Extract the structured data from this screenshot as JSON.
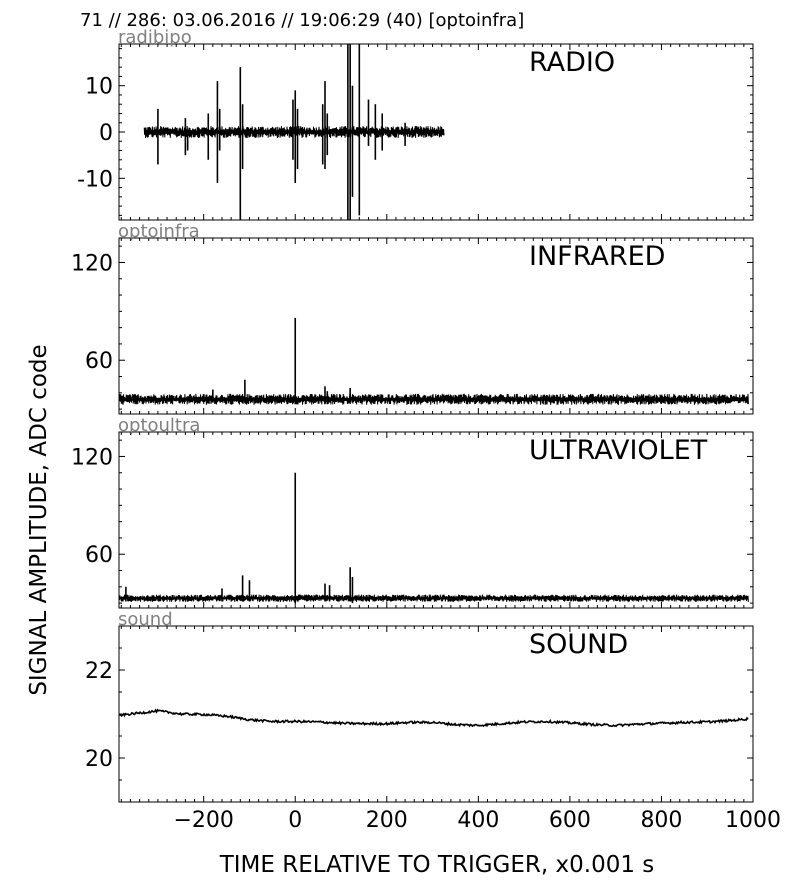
{
  "figure": {
    "header": "71 // 286:   03.06.2016 // 19:06:29 (40)  [optoinfra]",
    "ylabel": "SIGNAL AMPLITUDE,  ADC code",
    "xlabel": "TIME RELATIVE TO TRIGGER,   x0.001 s",
    "x_ticks": [
      "−200",
      "0",
      "200",
      "400",
      "600",
      "800",
      "1000"
    ]
  },
  "chart_data": [
    {
      "type": "line",
      "channel": "radibipo",
      "panel_label": "RADIO",
      "xlim": [
        -385,
        1000
      ],
      "ylim": [
        -19,
        19
      ],
      "y_ticks": [
        10,
        0,
        -10
      ],
      "y_tick_labels": [
        "10",
        "0",
        "-10"
      ],
      "x_range": [
        -330,
        325
      ],
      "baseline": 0,
      "noise": 1.0,
      "spikes": [
        [
          -300,
          5,
          -7
        ],
        [
          -240,
          3,
          -5
        ],
        [
          -235,
          -4,
          0
        ],
        [
          -190,
          4,
          -6
        ],
        [
          -170,
          11,
          -11
        ],
        [
          -165,
          5,
          -4
        ],
        [
          -120,
          14,
          -19
        ],
        [
          -115,
          6,
          -8
        ],
        [
          0,
          9,
          -11
        ],
        [
          5,
          5,
          -8
        ],
        [
          -5,
          7,
          -6
        ],
        [
          60,
          6,
          -7
        ],
        [
          65,
          11,
          -8
        ],
        [
          70,
          4,
          -5
        ],
        [
          115,
          19,
          -19
        ],
        [
          120,
          19,
          -19
        ],
        [
          125,
          10,
          -14
        ],
        [
          140,
          19,
          -18
        ],
        [
          160,
          7,
          -3
        ],
        [
          175,
          6,
          -6
        ],
        [
          190,
          4,
          -4
        ],
        [
          240,
          2,
          -3
        ]
      ]
    },
    {
      "type": "line",
      "channel": "optoinfra",
      "panel_label": "INFRARED",
      "xlim": [
        -385,
        1000
      ],
      "ylim": [
        27,
        135
      ],
      "y_ticks": [
        120,
        60
      ],
      "y_tick_labels": [
        "120",
        "60"
      ],
      "x_range": [
        -385,
        990
      ],
      "baseline": 36,
      "noise": 2.6,
      "spikes": [
        [
          -180,
          42,
          34
        ],
        [
          -110,
          48,
          34
        ],
        [
          0,
          86,
          33
        ],
        [
          65,
          44,
          33
        ],
        [
          70,
          41,
          33
        ],
        [
          120,
          43,
          34
        ]
      ]
    },
    {
      "type": "line",
      "channel": "optoultra",
      "panel_label": "ULTRAVIOLET",
      "xlim": [
        -385,
        1000
      ],
      "ylim": [
        27,
        135
      ],
      "y_ticks": [
        120,
        60
      ],
      "y_tick_labels": [
        "120",
        "60"
      ],
      "x_range": [
        -385,
        990
      ],
      "baseline": 33,
      "noise": 1.7,
      "spikes": [
        [
          -370,
          40,
          31
        ],
        [
          -160,
          39,
          31
        ],
        [
          -115,
          47,
          31
        ],
        [
          -100,
          44,
          31
        ],
        [
          0,
          110,
          30
        ],
        [
          65,
          42,
          31
        ],
        [
          75,
          41,
          31
        ],
        [
          120,
          52,
          31
        ],
        [
          125,
          46,
          30
        ]
      ]
    },
    {
      "type": "line",
      "channel": "sound",
      "panel_label": "SOUND",
      "xlim": [
        -385,
        1000
      ],
      "ylim": [
        19,
        23
      ],
      "y_ticks": [
        22,
        20
      ],
      "y_tick_labels": [
        "22",
        "20"
      ],
      "x_range": [
        -385,
        990
      ],
      "noise": 0.025,
      "curve": [
        [
          -385,
          20.97
        ],
        [
          -300,
          21.07
        ],
        [
          -250,
          21.0
        ],
        [
          -200,
          20.99
        ],
        [
          -150,
          20.95
        ],
        [
          -100,
          20.87
        ],
        [
          -50,
          20.83
        ],
        [
          0,
          20.83
        ],
        [
          50,
          20.82
        ],
        [
          100,
          20.79
        ],
        [
          150,
          20.78
        ],
        [
          200,
          20.78
        ],
        [
          250,
          20.81
        ],
        [
          300,
          20.81
        ],
        [
          350,
          20.76
        ],
        [
          400,
          20.74
        ],
        [
          450,
          20.78
        ],
        [
          500,
          20.82
        ],
        [
          550,
          20.83
        ],
        [
          600,
          20.8
        ],
        [
          650,
          20.76
        ],
        [
          700,
          20.74
        ],
        [
          750,
          20.77
        ],
        [
          800,
          20.79
        ],
        [
          850,
          20.81
        ],
        [
          900,
          20.82
        ],
        [
          950,
          20.85
        ],
        [
          990,
          20.89
        ]
      ]
    }
  ]
}
